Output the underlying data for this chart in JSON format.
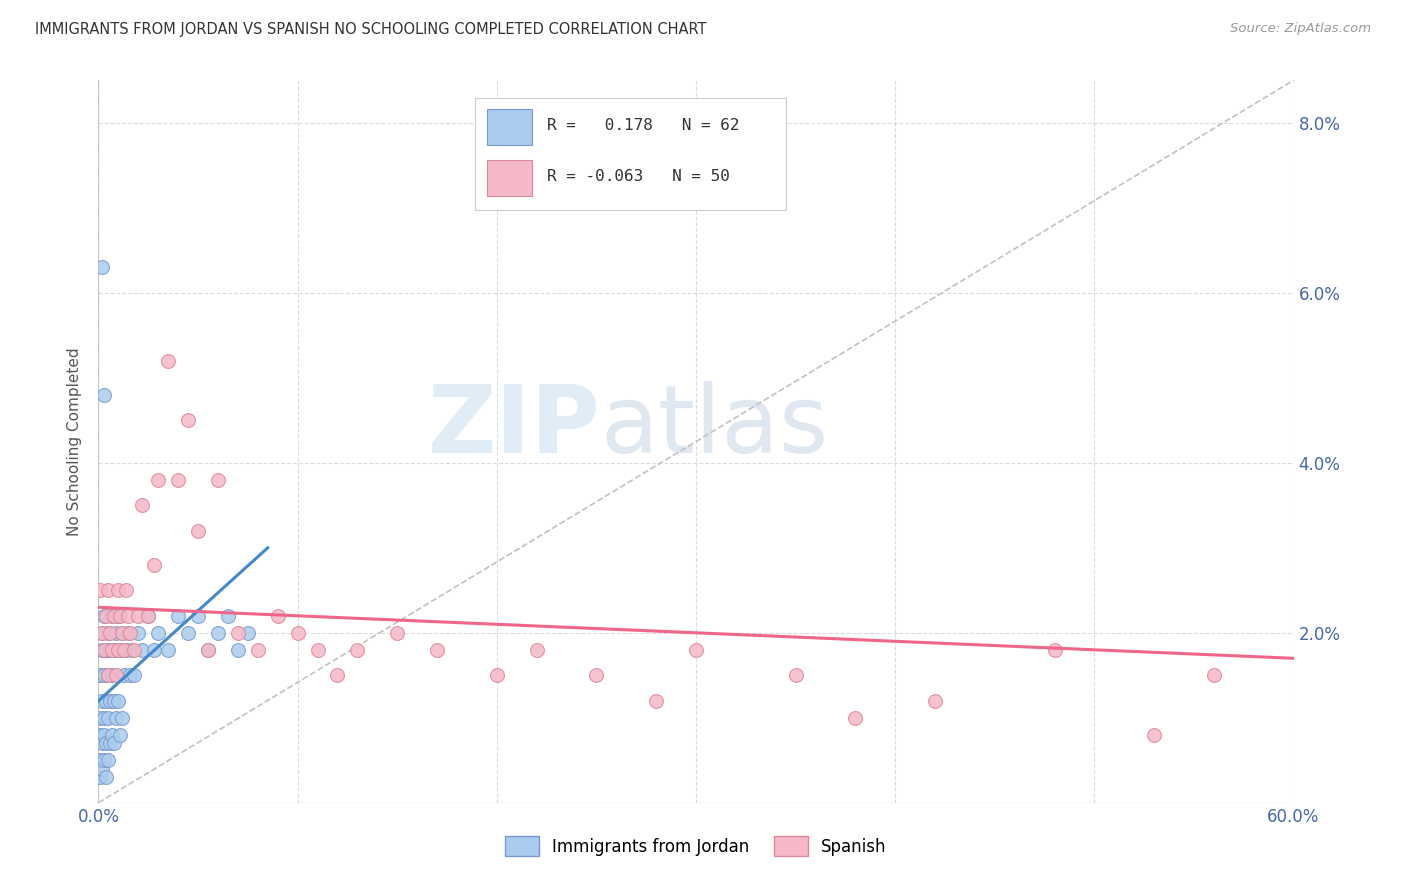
{
  "title": "IMMIGRANTS FROM JORDAN VS SPANISH NO SCHOOLING COMPLETED CORRELATION CHART",
  "source": "Source: ZipAtlas.com",
  "ylabel": "No Schooling Completed",
  "right_yticklabels": [
    "",
    "2.0%",
    "4.0%",
    "6.0%",
    "8.0%"
  ],
  "xlim": [
    0.0,
    0.6
  ],
  "ylim": [
    0.0,
    0.085
  ],
  "jordan_color": "#aaccee",
  "jordan_edge_color": "#7799cc",
  "spanish_color": "#f5b8c8",
  "spanish_edge_color": "#dd8899",
  "jordan_trend_color": "#4488cc",
  "spanish_trend_color": "#ee6688",
  "diagonal_color": "#bbbbbb",
  "watermark_zip": "ZIP",
  "watermark_atlas": "atlas",
  "background_color": "#ffffff",
  "grid_color": "#cccccc",
  "jordan_x": [
    0.001,
    0.001,
    0.001,
    0.001,
    0.001,
    0.002,
    0.002,
    0.002,
    0.002,
    0.002,
    0.003,
    0.003,
    0.003,
    0.003,
    0.003,
    0.004,
    0.004,
    0.004,
    0.004,
    0.005,
    0.005,
    0.005,
    0.005,
    0.006,
    0.006,
    0.006,
    0.007,
    0.007,
    0.007,
    0.008,
    0.008,
    0.008,
    0.009,
    0.009,
    0.01,
    0.01,
    0.011,
    0.011,
    0.012,
    0.012,
    0.013,
    0.014,
    0.015,
    0.016,
    0.017,
    0.018,
    0.02,
    0.022,
    0.025,
    0.028,
    0.03,
    0.035,
    0.04,
    0.045,
    0.05,
    0.055,
    0.06,
    0.065,
    0.07,
    0.075,
    0.002,
    0.003
  ],
  "jordan_y": [
    0.01,
    0.015,
    0.008,
    0.005,
    0.003,
    0.018,
    0.012,
    0.02,
    0.007,
    0.004,
    0.015,
    0.01,
    0.022,
    0.008,
    0.005,
    0.018,
    0.012,
    0.007,
    0.003,
    0.02,
    0.015,
    0.01,
    0.005,
    0.018,
    0.012,
    0.007,
    0.022,
    0.015,
    0.008,
    0.018,
    0.012,
    0.007,
    0.02,
    0.01,
    0.022,
    0.012,
    0.018,
    0.008,
    0.02,
    0.01,
    0.015,
    0.018,
    0.02,
    0.015,
    0.018,
    0.015,
    0.02,
    0.018,
    0.022,
    0.018,
    0.02,
    0.018,
    0.022,
    0.02,
    0.022,
    0.018,
    0.02,
    0.022,
    0.018,
    0.02,
    0.063,
    0.048
  ],
  "spanish_x": [
    0.001,
    0.002,
    0.003,
    0.004,
    0.005,
    0.005,
    0.006,
    0.007,
    0.008,
    0.009,
    0.01,
    0.01,
    0.011,
    0.012,
    0.013,
    0.014,
    0.015,
    0.016,
    0.018,
    0.02,
    0.022,
    0.025,
    0.028,
    0.03,
    0.035,
    0.04,
    0.045,
    0.05,
    0.055,
    0.06,
    0.07,
    0.08,
    0.09,
    0.1,
    0.11,
    0.12,
    0.13,
    0.15,
    0.17,
    0.2,
    0.22,
    0.25,
    0.28,
    0.3,
    0.35,
    0.38,
    0.42,
    0.48,
    0.53,
    0.56
  ],
  "spanish_y": [
    0.025,
    0.02,
    0.018,
    0.022,
    0.015,
    0.025,
    0.02,
    0.018,
    0.022,
    0.015,
    0.025,
    0.018,
    0.022,
    0.02,
    0.018,
    0.025,
    0.022,
    0.02,
    0.018,
    0.022,
    0.035,
    0.022,
    0.028,
    0.038,
    0.052,
    0.038,
    0.045,
    0.032,
    0.018,
    0.038,
    0.02,
    0.018,
    0.022,
    0.02,
    0.018,
    0.015,
    0.018,
    0.02,
    0.018,
    0.015,
    0.018,
    0.015,
    0.012,
    0.018,
    0.015,
    0.01,
    0.012,
    0.018,
    0.008,
    0.015
  ],
  "jordan_trend_x": [
    0.0,
    0.085
  ],
  "jordan_trend_y": [
    0.012,
    0.03
  ],
  "spanish_trend_x": [
    0.0,
    0.6
  ],
  "spanish_trend_y": [
    0.023,
    0.017
  ]
}
